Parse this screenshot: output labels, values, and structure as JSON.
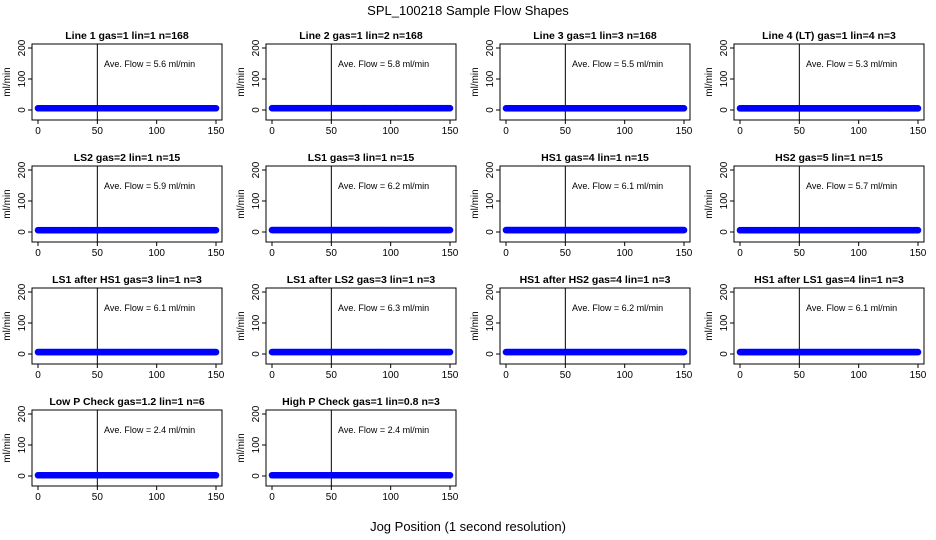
{
  "figure": {
    "title": "SPL_100218  Sample Flow Shapes",
    "xlabel": "Jog Position (1 second resolution)"
  },
  "colors": {
    "points": "#0000ff",
    "axis": "#000000"
  },
  "chart_data": [
    {
      "type": "scatter",
      "title": "Line 1 gas=1 lin=1 n=168",
      "ylabel": "ml/min",
      "annotation": "Ave. Flow =  5.6  ml/min",
      "x_range": [
        0,
        150
      ],
      "y_level": 5.6,
      "xlim": [
        0,
        150
      ],
      "ylim": [
        0,
        200
      ],
      "xticks": [
        "0",
        "50",
        "100",
        "150"
      ],
      "yticks": [
        "0",
        "100",
        "200"
      ],
      "vline_x": 50
    },
    {
      "type": "scatter",
      "title": "Line 2 gas=1 lin=2 n=168",
      "ylabel": "ml/min",
      "annotation": "Ave. Flow =  5.8  ml/min",
      "x_range": [
        0,
        150
      ],
      "y_level": 5.8,
      "xlim": [
        0,
        150
      ],
      "ylim": [
        0,
        200
      ],
      "xticks": [
        "0",
        "50",
        "100",
        "150"
      ],
      "yticks": [
        "0",
        "100",
        "200"
      ],
      "vline_x": 50
    },
    {
      "type": "scatter",
      "title": "Line 3 gas=1 lin=3 n=168",
      "ylabel": "ml/min",
      "annotation": "Ave. Flow =  5.5  ml/min",
      "x_range": [
        0,
        150
      ],
      "y_level": 5.5,
      "xlim": [
        0,
        150
      ],
      "ylim": [
        0,
        200
      ],
      "xticks": [
        "0",
        "50",
        "100",
        "150"
      ],
      "yticks": [
        "0",
        "100",
        "200"
      ],
      "vline_x": 50
    },
    {
      "type": "scatter",
      "title": "Line 4 (LT) gas=1 lin=4 n=3",
      "ylabel": "ml/min",
      "annotation": "Ave. Flow =  5.3  ml/min",
      "x_range": [
        0,
        150
      ],
      "y_level": 5.3,
      "xlim": [
        0,
        150
      ],
      "ylim": [
        0,
        200
      ],
      "xticks": [
        "0",
        "50",
        "100",
        "150"
      ],
      "yticks": [
        "0",
        "100",
        "200"
      ],
      "vline_x": 50
    },
    {
      "type": "scatter",
      "title": "LS2 gas=2 lin=1 n=15",
      "ylabel": "ml/min",
      "annotation": "Ave. Flow =  5.9  ml/min",
      "x_range": [
        0,
        150
      ],
      "y_level": 5.9,
      "xlim": [
        0,
        150
      ],
      "ylim": [
        0,
        200
      ],
      "xticks": [
        "0",
        "50",
        "100",
        "150"
      ],
      "yticks": [
        "0",
        "100",
        "200"
      ],
      "vline_x": 50
    },
    {
      "type": "scatter",
      "title": "LS1 gas=3 lin=1 n=15",
      "ylabel": "ml/min",
      "annotation": "Ave. Flow =  6.2  ml/min",
      "x_range": [
        0,
        150
      ],
      "y_level": 6.2,
      "xlim": [
        0,
        150
      ],
      "ylim": [
        0,
        200
      ],
      "xticks": [
        "0",
        "50",
        "100",
        "150"
      ],
      "yticks": [
        "0",
        "100",
        "200"
      ],
      "vline_x": 50
    },
    {
      "type": "scatter",
      "title": "HS1 gas=4 lin=1 n=15",
      "ylabel": "ml/min",
      "annotation": "Ave. Flow =  6.1  ml/min",
      "x_range": [
        0,
        150
      ],
      "y_level": 6.1,
      "xlim": [
        0,
        150
      ],
      "ylim": [
        0,
        200
      ],
      "xticks": [
        "0",
        "50",
        "100",
        "150"
      ],
      "yticks": [
        "0",
        "100",
        "200"
      ],
      "vline_x": 50
    },
    {
      "type": "scatter",
      "title": "HS2 gas=5 lin=1 n=15",
      "ylabel": "ml/min",
      "annotation": "Ave. Flow =  5.7  ml/min",
      "x_range": [
        0,
        150
      ],
      "y_level": 5.7,
      "xlim": [
        0,
        150
      ],
      "ylim": [
        0,
        200
      ],
      "xticks": [
        "0",
        "50",
        "100",
        "150"
      ],
      "yticks": [
        "0",
        "100",
        "200"
      ],
      "vline_x": 50
    },
    {
      "type": "scatter",
      "title": "LS1 after HS1 gas=3 lin=1 n=3",
      "ylabel": "ml/min",
      "annotation": "Ave. Flow =  6.1  ml/min",
      "x_range": [
        0,
        150
      ],
      "y_level": 6.1,
      "xlim": [
        0,
        150
      ],
      "ylim": [
        0,
        200
      ],
      "xticks": [
        "0",
        "50",
        "100",
        "150"
      ],
      "yticks": [
        "0",
        "100",
        "200"
      ],
      "vline_x": 50
    },
    {
      "type": "scatter",
      "title": "LS1 after LS2 gas=3 lin=1 n=3",
      "ylabel": "ml/min",
      "annotation": "Ave. Flow =  6.3  ml/min",
      "x_range": [
        0,
        150
      ],
      "y_level": 6.3,
      "xlim": [
        0,
        150
      ],
      "ylim": [
        0,
        200
      ],
      "xticks": [
        "0",
        "50",
        "100",
        "150"
      ],
      "yticks": [
        "0",
        "100",
        "200"
      ],
      "vline_x": 50
    },
    {
      "type": "scatter",
      "title": "HS1 after HS2 gas=4 lin=1 n=3",
      "ylabel": "ml/min",
      "annotation": "Ave. Flow =  6.2  ml/min",
      "x_range": [
        0,
        150
      ],
      "y_level": 6.2,
      "xlim": [
        0,
        150
      ],
      "ylim": [
        0,
        200
      ],
      "xticks": [
        "0",
        "50",
        "100",
        "150"
      ],
      "yticks": [
        "0",
        "100",
        "200"
      ],
      "vline_x": 50
    },
    {
      "type": "scatter",
      "title": "HS1 after LS1 gas=4 lin=1 n=3",
      "ylabel": "ml/min",
      "annotation": "Ave. Flow =  6.1  ml/min",
      "x_range": [
        0,
        150
      ],
      "y_level": 6.1,
      "xlim": [
        0,
        150
      ],
      "ylim": [
        0,
        200
      ],
      "xticks": [
        "0",
        "50",
        "100",
        "150"
      ],
      "yticks": [
        "0",
        "100",
        "200"
      ],
      "vline_x": 50
    },
    {
      "type": "scatter",
      "title": "Low P Check gas=1.2 lin=1 n=6",
      "ylabel": "ml/min",
      "annotation": "Ave. Flow =  2.4  ml/min",
      "x_range": [
        0,
        150
      ],
      "y_level": 2.4,
      "xlim": [
        0,
        150
      ],
      "ylim": [
        0,
        200
      ],
      "xticks": [
        "0",
        "50",
        "100",
        "150"
      ],
      "yticks": [
        "0",
        "100",
        "200"
      ],
      "vline_x": 50
    },
    {
      "type": "scatter",
      "title": "High P Check gas=1 lin=0.8 n=3",
      "ylabel": "ml/min",
      "annotation": "Ave. Flow =  2.4  ml/min",
      "x_range": [
        0,
        150
      ],
      "y_level": 2.4,
      "xlim": [
        0,
        150
      ],
      "ylim": [
        0,
        200
      ],
      "xticks": [
        "0",
        "50",
        "100",
        "150"
      ],
      "yticks": [
        "0",
        "100",
        "200"
      ],
      "vline_x": 50
    }
  ]
}
